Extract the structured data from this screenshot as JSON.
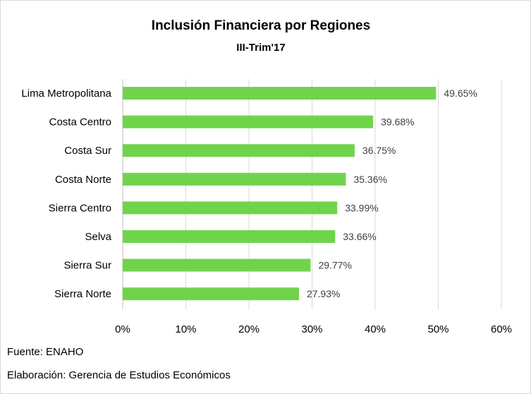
{
  "chart_data": {
    "type": "bar",
    "orientation": "horizontal",
    "title": "Inclusión Financiera por Regiones",
    "subtitle": "III-Trim'17",
    "categories": [
      "Lima Metropolitana",
      "Costa Centro",
      "Costa Sur",
      "Costa Norte",
      "Sierra Centro",
      "Selva",
      "Sierra Sur",
      "Sierra Norte"
    ],
    "values": [
      49.65,
      39.68,
      36.75,
      35.36,
      33.99,
      33.66,
      29.77,
      27.93
    ],
    "value_labels": [
      "49.65%",
      "39.68%",
      "36.75%",
      "35.36%",
      "33.99%",
      "33.66%",
      "29.77%",
      "27.93%"
    ],
    "xlim": [
      0,
      60
    ],
    "x_ticks": [
      0,
      10,
      20,
      30,
      40,
      50,
      60
    ],
    "x_tick_labels": [
      "0%",
      "10%",
      "20%",
      "30%",
      "40%",
      "50%",
      "60%"
    ],
    "grid": true,
    "bar_color": "#70d44b",
    "grid_color": "#d9d9d9"
  },
  "footnotes": {
    "source": "Fuente: ENAHO",
    "credit": "Elaboración: Gerencia de Estudios Económicos"
  }
}
